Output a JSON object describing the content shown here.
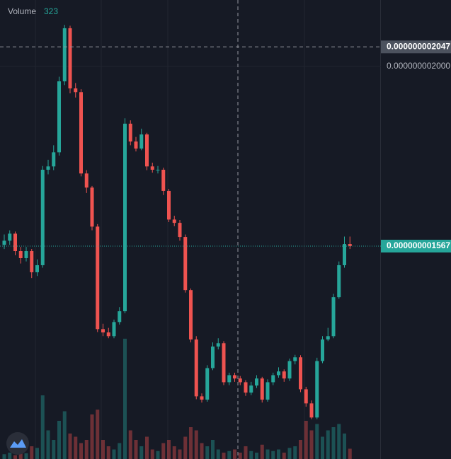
{
  "chart_data": {
    "type": "candlestick",
    "volume": {
      "label": "Volume",
      "values": [
        150,
        200,
        120,
        300,
        180,
        400,
        350,
        2000,
        900,
        600,
        1200,
        1500,
        800,
        700,
        500,
        600,
        1400,
        1550,
        600,
        400,
        300,
        500,
        3780,
        900,
        600,
        400,
        700,
        300,
        250,
        500,
        600,
        400,
        300,
        700,
        1000,
        900,
        500,
        400,
        600,
        300,
        200,
        250,
        300,
        200,
        400,
        250,
        200,
        450,
        300,
        250,
        300,
        200,
        350,
        400,
        600,
        1200,
        900,
        1100,
        700,
        900,
        1000,
        1100,
        800,
        323
      ],
      "ylim": [
        0,
        4000
      ]
    },
    "open": [
      1.57e-09,
      1.58e-09,
      1.597e-09,
      1.555e-09,
      1.538e-09,
      1.555e-09,
      1.504e-09,
      1.521e-09,
      1.751e-09,
      1.759e-09,
      1.793e-09,
      1.964e-09,
      2.092e-09,
      1.947e-09,
      1.938e-09,
      1.742e-09,
      1.708e-09,
      1.614e-09,
      1.367e-09,
      1.359e-09,
      1.35e-09,
      1.384e-09,
      1.41e-09,
      1.862e-09,
      1.819e-09,
      1.802e-09,
      1.836e-09,
      1.759e-09,
      1.751e-09,
      1.751e-09,
      1.7e-09,
      1.631e-09,
      1.623e-09,
      1.589e-09,
      1.461e-09,
      1.342e-09,
      1.205e-09,
      1.197e-09,
      1.273e-09,
      1.325e-09,
      1.333e-09,
      1.239e-09,
      1.256e-09,
      1.248e-09,
      1.239e-09,
      1.214e-09,
      1.231e-09,
      1.248e-09,
      1.197e-09,
      1.239e-09,
      1.256e-09,
      1.265e-09,
      1.248e-09,
      1.29e-09,
      1.299e-09,
      1.222e-09,
      1.188e-09,
      1.154e-09,
      1.29e-09,
      1.342e-09,
      1.35e-09,
      1.444e-09,
      1.521e-09,
      1.572e-09
    ],
    "high": [
      1.595e-09,
      1.605e-09,
      1.602e-09,
      1.565e-09,
      1.565e-09,
      1.56e-09,
      1.535e-09,
      1.76e-09,
      1.775e-09,
      1.81e-09,
      1.975e-09,
      2.1e-09,
      2.098e-09,
      1.96e-09,
      1.945e-09,
      1.75e-09,
      1.712e-09,
      1.62e-09,
      1.38e-09,
      1.37e-09,
      1.39e-09,
      1.42e-09,
      1.875e-09,
      1.87e-09,
      1.83e-09,
      1.85e-09,
      1.84e-09,
      1.768e-09,
      1.76e-09,
      1.756e-09,
      1.705e-09,
      1.64e-09,
      1.63e-09,
      1.595e-09,
      1.465e-09,
      1.35e-09,
      1.212e-09,
      1.28e-09,
      1.335e-09,
      1.345e-09,
      1.338e-09,
      1.262e-09,
      1.262e-09,
      1.254e-09,
      1.244e-09,
      1.24e-09,
      1.256e-09,
      1.252e-09,
      1.246e-09,
      1.262e-09,
      1.275e-09,
      1.27e-09,
      1.296e-09,
      1.305e-09,
      1.304e-09,
      1.228e-09,
      1.195e-09,
      1.298e-09,
      1.35e-09,
      1.37e-09,
      1.452e-09,
      1.53e-09,
      1.59e-09,
      1.59e-09
    ],
    "low": [
      1.56e-09,
      1.57e-09,
      1.545e-09,
      1.525e-09,
      1.53e-09,
      1.49e-09,
      1.495e-09,
      1.515e-09,
      1.74e-09,
      1.75e-09,
      1.785e-09,
      1.955e-09,
      1.935e-09,
      1.925e-09,
      1.735e-09,
      1.695e-09,
      1.605e-09,
      1.36e-09,
      1.35e-09,
      1.345e-09,
      1.345e-09,
      1.378e-09,
      1.405e-09,
      1.81e-09,
      1.795e-09,
      1.798e-09,
      1.75e-09,
      1.744e-09,
      1.742e-09,
      1.69e-09,
      1.625e-09,
      1.615e-09,
      1.58e-09,
      1.455e-09,
      1.335e-09,
      1.198e-09,
      1.19e-09,
      1.192e-09,
      1.268e-09,
      1.318e-09,
      1.232e-09,
      1.232e-09,
      1.24e-09,
      1.232e-09,
      1.206e-09,
      1.208e-09,
      1.225e-09,
      1.19e-09,
      1.192e-09,
      1.232e-09,
      1.25e-09,
      1.24e-09,
      1.242e-09,
      1.282e-09,
      1.215e-09,
      1.18e-09,
      1.15e-09,
      1.15e-09,
      1.285e-09,
      1.338e-09,
      1.345e-09,
      1.44e-09,
      1.515e-09,
      1.56e-09
    ],
    "close": [
      1.58e-09,
      1.597e-09,
      1.555e-09,
      1.538e-09,
      1.555e-09,
      1.504e-09,
      1.521e-09,
      1.751e-09,
      1.759e-09,
      1.793e-09,
      1.964e-09,
      2.092e-09,
      1.947e-09,
      1.938e-09,
      1.742e-09,
      1.708e-09,
      1.614e-09,
      1.367e-09,
      1.359e-09,
      1.35e-09,
      1.384e-09,
      1.41e-09,
      1.862e-09,
      1.819e-09,
      1.802e-09,
      1.836e-09,
      1.759e-09,
      1.751e-09,
      1.751e-09,
      1.7e-09,
      1.631e-09,
      1.623e-09,
      1.589e-09,
      1.461e-09,
      1.342e-09,
      1.205e-09,
      1.197e-09,
      1.273e-09,
      1.325e-09,
      1.333e-09,
      1.239e-09,
      1.256e-09,
      1.248e-09,
      1.239e-09,
      1.214e-09,
      1.231e-09,
      1.248e-09,
      1.197e-09,
      1.239e-09,
      1.256e-09,
      1.265e-09,
      1.248e-09,
      1.29e-09,
      1.299e-09,
      1.222e-09,
      1.188e-09,
      1.154e-09,
      1.29e-09,
      1.342e-09,
      1.35e-09,
      1.444e-09,
      1.521e-09,
      1.572e-09,
      1.567e-09
    ],
    "up_color": "#26a69a",
    "down_color": "#ef5350",
    "ylim": [
      1.054e-09,
      2.16e-09
    ],
    "yticks": [
      {
        "value": 2e-09,
        "label": "0.000000002000"
      }
    ],
    "crosshair": {
      "value": 2.047e-09,
      "label": "0.000000002047"
    },
    "last_price": {
      "value": 1.567e-09,
      "label": "0.000000001567"
    },
    "grid": true
  }
}
